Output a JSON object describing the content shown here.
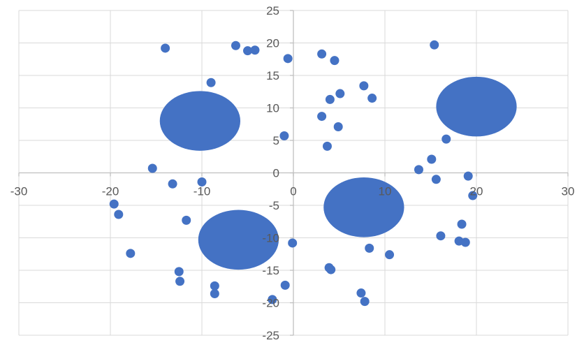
{
  "chart_data": {
    "type": "scatter",
    "title": "",
    "xlabel": "",
    "ylabel": "",
    "xlim": [
      -30,
      30
    ],
    "ylim": [
      -25,
      25
    ],
    "x_ticks": [
      -30,
      -20,
      -10,
      0,
      10,
      20,
      30
    ],
    "y_ticks": [
      25,
      20,
      15,
      10,
      5,
      0,
      -5,
      -10,
      -15,
      -20,
      -25
    ],
    "grid": true,
    "legend": "none",
    "colors": {
      "marker": "#4472C4",
      "grid": "#D9D9D9",
      "axis": "#D9D9D9",
      "tick_text": "#595959"
    },
    "series": [
      {
        "points": [
          [
            -14,
            19.2
          ],
          [
            -6.3,
            19.6
          ],
          [
            -5,
            18.8
          ],
          [
            -4.2,
            18.9
          ],
          [
            -0.6,
            17.6
          ],
          [
            3.1,
            18.3
          ],
          [
            4.5,
            17.3
          ],
          [
            15.4,
            19.7
          ],
          [
            -9,
            13.9
          ],
          [
            7.7,
            13.4
          ],
          [
            5.1,
            12.2
          ],
          [
            4,
            11.3
          ],
          [
            8.6,
            11.5
          ],
          [
            3.1,
            8.7
          ],
          [
            4.9,
            7.1
          ],
          [
            -1,
            5.7
          ],
          [
            3.7,
            4.1
          ],
          [
            16.7,
            5.2
          ],
          [
            -15.4,
            0.7
          ],
          [
            -13.2,
            -1.7
          ],
          [
            -10,
            -1.4
          ],
          [
            15.1,
            2.1
          ],
          [
            13.7,
            0.5
          ],
          [
            15.6,
            -1
          ],
          [
            19.1,
            -0.5
          ],
          [
            19.6,
            -3.5
          ],
          [
            -19.6,
            -4.8
          ],
          [
            -19.1,
            -6.4
          ],
          [
            -11.7,
            -7.3
          ],
          [
            18.4,
            -7.9
          ],
          [
            -17.8,
            -12.4
          ],
          [
            -0.1,
            -10.8
          ],
          [
            8.3,
            -11.6
          ],
          [
            10.5,
            -12.6
          ],
          [
            16.1,
            -9.7
          ],
          [
            18.1,
            -10.5
          ],
          [
            18.8,
            -10.7
          ],
          [
            -12.5,
            -15.2
          ],
          [
            -12.4,
            -16.7
          ],
          [
            3.9,
            -14.6
          ],
          [
            4.1,
            -14.9
          ],
          [
            -8.6,
            -17.4
          ],
          [
            -8.6,
            -18.6
          ],
          [
            -0.9,
            -17.3
          ],
          [
            -2.3,
            -19.5
          ],
          [
            7.4,
            -18.5
          ],
          [
            7.8,
            -19.8
          ]
        ],
        "clusters": [
          {
            "cx": -10.2,
            "cy": 8,
            "rx": 4.4,
            "ry": 4.6
          },
          {
            "cx": 20,
            "cy": 10.2,
            "rx": 4.4,
            "ry": 4.6
          },
          {
            "cx": -6,
            "cy": -10.3,
            "rx": 4.4,
            "ry": 4.6
          },
          {
            "cx": 7.7,
            "cy": -5.3,
            "rx": 4.4,
            "ry": 4.6
          }
        ]
      }
    ]
  }
}
